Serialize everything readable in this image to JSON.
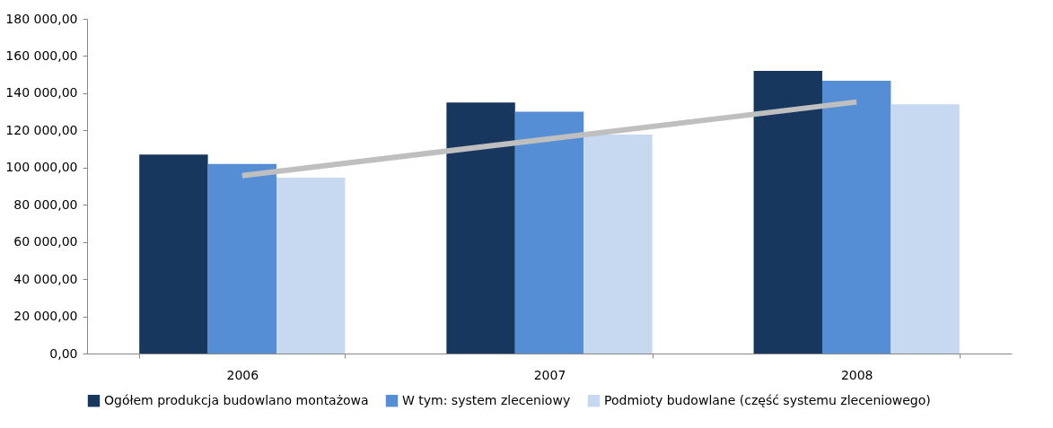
{
  "chart_data": {
    "type": "bar",
    "categories": [
      "2006",
      "2007",
      "2008"
    ],
    "series": [
      {
        "name": "Ogółem produkcja budowlano montażowa",
        "color": "#17375e",
        "values": [
          107000,
          135000,
          152000
        ]
      },
      {
        "name": "W tym: system zleceniowy",
        "color": "#558ed5",
        "values": [
          102000,
          130000,
          146700
        ]
      },
      {
        "name": "Podmioty budowlane (część systemu zleceniowego)",
        "color": "#c6d9f1",
        "values": [
          94600,
          117700,
          134000
        ]
      },
      {
        "type": "line",
        "color": "#bfbfbf",
        "values": [
          95700,
          115500,
          135300
        ]
      }
    ],
    "ylim": [
      0,
      180000
    ],
    "yticks": [
      {
        "value": 0,
        "label": "0,00"
      },
      {
        "value": 20000,
        "label": "20 000,00"
      },
      {
        "value": 40000,
        "label": "40 000,00"
      },
      {
        "value": 60000,
        "label": "60 000,00"
      },
      {
        "value": 80000,
        "label": "80 000,00"
      },
      {
        "value": 100000,
        "label": "100 000,00"
      },
      {
        "value": 120000,
        "label": "120 000,00"
      },
      {
        "value": 140000,
        "label": "140 000,00"
      },
      {
        "value": 160000,
        "label": "160 000,00"
      },
      {
        "value": 180000,
        "label": "180 000,00"
      }
    ],
    "grid": false,
    "legend": "bottom"
  }
}
